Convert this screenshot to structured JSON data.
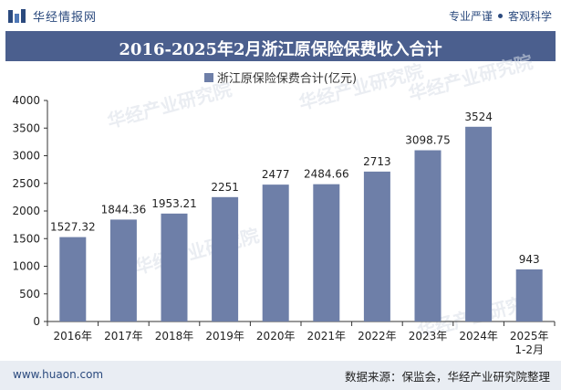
{
  "header": {
    "site_name": "华经情报网",
    "slogan_left": "专业严谨",
    "slogan_right": "客观科学"
  },
  "chart_data": {
    "type": "bar",
    "title": "2016-2025年2月浙江原保险保费收入合计",
    "series": [
      {
        "name": "浙江原保险保费合计(亿元)",
        "values": [
          1527.32,
          1844.36,
          1953.21,
          2251,
          2477,
          2484.66,
          2713,
          3098.75,
          3524,
          943
        ]
      }
    ],
    "categories": [
      "2016年",
      "2017年",
      "2018年",
      "2019年",
      "2020年",
      "2021年",
      "2022年",
      "2023年",
      "2024年",
      "2025年\n1-2月"
    ],
    "data_labels": [
      "1527.32",
      "1844.36",
      "1953.21",
      "2251",
      "2477",
      "2484.66",
      "2713",
      "3098.75",
      "3524",
      "943"
    ],
    "y_ticks": [
      0,
      500,
      1000,
      1500,
      2000,
      2500,
      3000,
      3500,
      4000
    ],
    "ylim": [
      0,
      4000
    ],
    "xlabel": "",
    "ylabel": "",
    "legend_position": "top-center",
    "grid": false,
    "bar_color": "#6e7fa8"
  },
  "watermark": "华经产业研究院",
  "footer": {
    "url": "www.huaon.com",
    "source": "数据来源：保监会，华经产业研究院整理"
  }
}
